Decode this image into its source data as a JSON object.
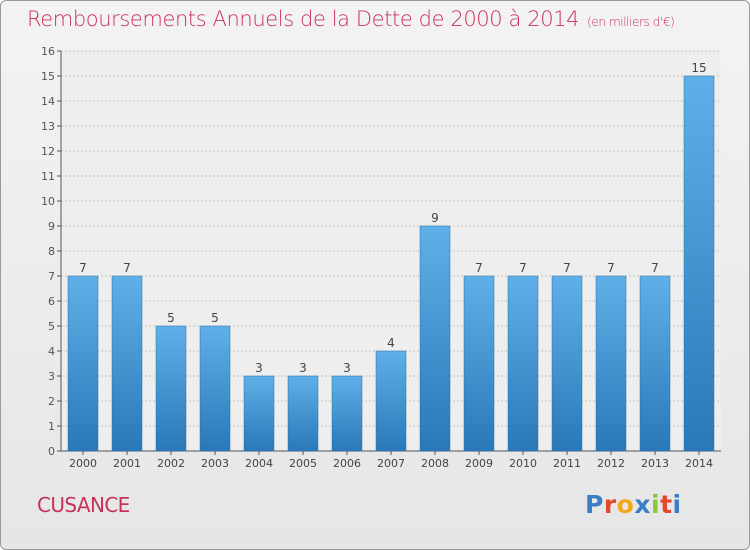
{
  "header": {
    "title": "Remboursements Annuels de la Dette de 2000 à 2014",
    "unit": "(en milliers d'€)"
  },
  "footer": {
    "town": "CUSANCE",
    "logo_letters": [
      "P",
      "r",
      "o",
      "x",
      "i",
      "t",
      "i"
    ],
    "logo_colors": [
      "#3a7fc4",
      "#e04b2c",
      "#f2a81d",
      "#3a7fc4",
      "#8cc63f",
      "#e04b2c",
      "#3a7fc4"
    ]
  },
  "colors": {
    "title": "#c8325a",
    "bar_top": "#5fb0e8",
    "bar_bottom": "#2a78b8",
    "grid": "#c4c4c4",
    "axis": "#555555"
  },
  "chart_data": {
    "type": "bar",
    "categories": [
      "2000",
      "2001",
      "2002",
      "2003",
      "2004",
      "2005",
      "2006",
      "2007",
      "2008",
      "2009",
      "2010",
      "2011",
      "2012",
      "2013",
      "2014"
    ],
    "values": [
      7,
      7,
      5,
      5,
      3,
      3,
      3,
      4,
      9,
      7,
      7,
      7,
      7,
      7,
      15
    ],
    "data_labels": [
      "7",
      "7",
      "5",
      "5",
      "3",
      "3",
      "3",
      "4",
      "9",
      "7",
      "7",
      "7",
      "7",
      "7",
      "15"
    ],
    "title": "Remboursements Annuels de la Dette de 2000 à 2014",
    "xlabel": "",
    "ylabel": "",
    "ylim": [
      0,
      16
    ],
    "yticks": [
      "0",
      "1",
      "2",
      "3",
      "4",
      "5",
      "6",
      "7",
      "8",
      "9",
      "10",
      "11",
      "12",
      "13",
      "14",
      "15",
      "16"
    ],
    "grid": true,
    "legend": "none"
  }
}
